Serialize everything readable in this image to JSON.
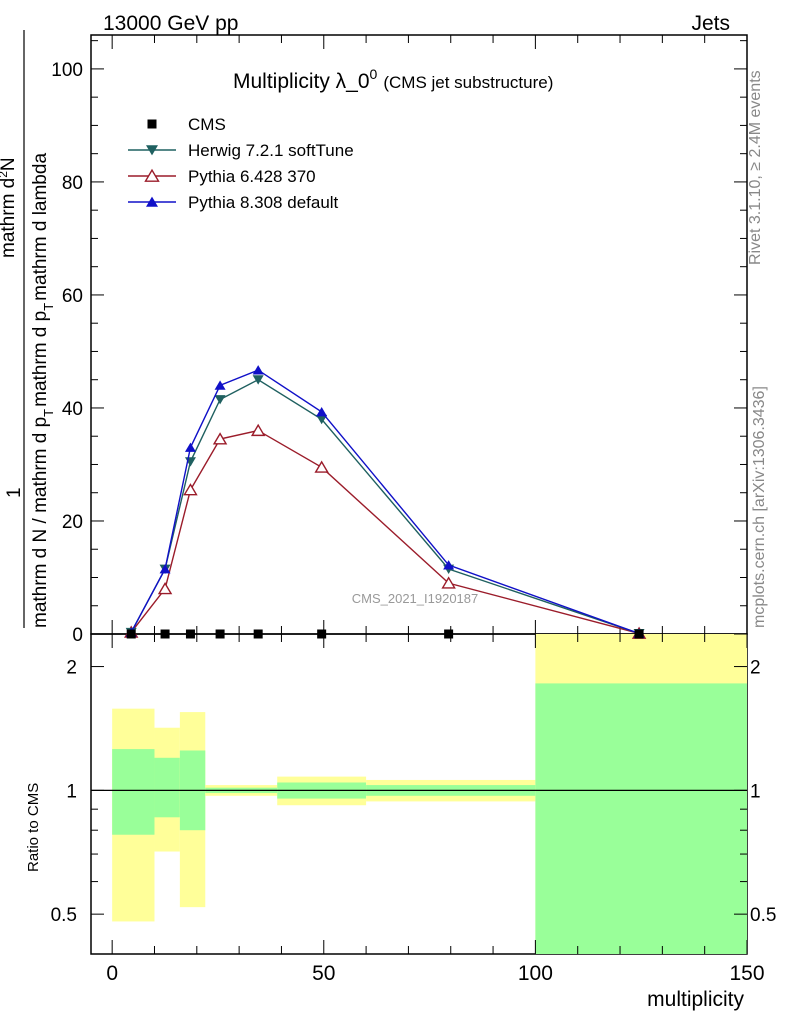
{
  "header": {
    "left": "13000 GeV pp",
    "right": "Jets"
  },
  "side_labels": {
    "rivet": "Rivet 3.1.10, ≥ 2.4M events",
    "mcplots": "mcplots.cern.ch [arXiv:1306.3436]"
  },
  "chart_data": {
    "type": "line",
    "title_main": "Multiplicity λ_0",
    "title_sup": "0",
    "title_sub": "(CMS jet substructure)",
    "watermark": "CMS_2021_I1920187",
    "ylabel_top": "1",
    "ylabel_frac_num": "mathrm d",
    "ylabel_frac_sup": "2",
    "ylabel_frac_rest": "N",
    "ylabel_den_pre": "mathrm d N / mathrm d p",
    "ylabel_den_sub": "T",
    "ylabel_den_mid": "mathrm d p",
    "ylabel_den_sub2": "T",
    "ylabel_den_end": "mathrm d lambda",
    "xlabel": "multiplicity",
    "ratio_ylabel": "Ratio to CMS",
    "xlim": [
      -5,
      150
    ],
    "ylim": [
      0,
      106
    ],
    "x_ticks": [
      "0",
      "50",
      "100",
      "150"
    ],
    "y_ticks": [
      "20",
      "40",
      "60",
      "80",
      "100"
    ],
    "y_zero": "0",
    "ratio_ticks": [
      "0.5",
      "1",
      "2"
    ],
    "legend": [
      {
        "name": "CMS",
        "color": "#000000",
        "marker": "square"
      },
      {
        "name": "Herwig 7.2.1 softTune",
        "color": "#1f6060",
        "marker": "tri-down"
      },
      {
        "name": "Pythia 6.428 370",
        "color": "#9b1c2a",
        "marker": "tri-up-open"
      },
      {
        "name": "Pythia 8.308 default",
        "color": "#1010c8",
        "marker": "tri-up"
      }
    ],
    "x": [
      4.5,
      12.5,
      18.5,
      25.5,
      34.5,
      49.5,
      79.5,
      124.5
    ],
    "series": [
      {
        "name": "CMS",
        "values": [
          0,
          0,
          0,
          0,
          0,
          0,
          0,
          0
        ]
      },
      {
        "name": "Herwig 7.2.1 softTune",
        "values": [
          0.3,
          11.5,
          30.5,
          41.5,
          45.0,
          38.0,
          11.5,
          0.1
        ]
      },
      {
        "name": "Pythia 6.428 370",
        "values": [
          0.3,
          8.0,
          25.5,
          34.5,
          36.0,
          29.5,
          9.0,
          0.1
        ]
      },
      {
        "name": "Pythia 8.308 default",
        "values": [
          0.3,
          11.5,
          33.0,
          44.0,
          46.7,
          39.3,
          12.2,
          0.1
        ]
      }
    ],
    "ratio_bands": [
      {
        "x0": 0,
        "x1": 10,
        "y_lo": 0.48,
        "y_hi": 1.58,
        "g_lo": 0.78,
        "g_hi": 1.26
      },
      {
        "x0": 10,
        "x1": 16,
        "y_lo": 0.71,
        "y_hi": 1.42,
        "g_lo": 0.86,
        "g_hi": 1.2
      },
      {
        "x0": 16,
        "x1": 22,
        "y_lo": 0.52,
        "y_hi": 1.55,
        "g_lo": 0.8,
        "g_hi": 1.25
      },
      {
        "x0": 22,
        "x1": 39,
        "y_lo": 0.97,
        "y_hi": 1.03,
        "g_lo": 0.985,
        "g_hi": 1.015
      },
      {
        "x0": 39,
        "x1": 60,
        "y_lo": 0.92,
        "y_hi": 1.08,
        "g_lo": 0.955,
        "g_hi": 1.045
      },
      {
        "x0": 60,
        "x1": 100,
        "y_lo": 0.94,
        "y_hi": 1.06,
        "g_lo": 0.97,
        "g_hi": 1.03
      },
      {
        "x0": 100,
        "x1": 150,
        "y_lo": 0.3,
        "y_hi": 2.4,
        "g_lo": 0.3,
        "g_hi": 1.82
      }
    ],
    "ratio_ylim": [
      0.4,
      2.4
    ],
    "band_colors": {
      "outer": "#ffff99",
      "inner": "#99ff99"
    }
  }
}
